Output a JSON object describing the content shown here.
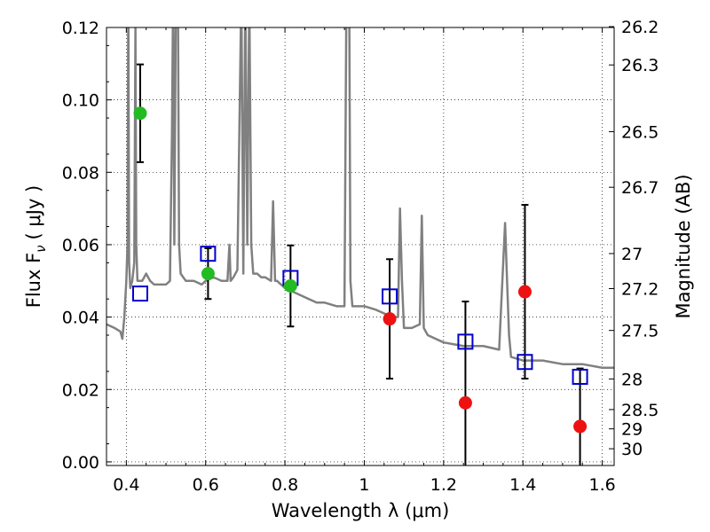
{
  "chart_data": {
    "type": "scatter",
    "xlabel": "Wavelength  λ (μm)",
    "ylabel": "Flux  F",
    "ylabel_sub": "ν",
    "ylabel_unit": "( μJy )",
    "y2label": "Magnitude (AB)",
    "xlim": [
      0.35,
      1.63
    ],
    "ylim": [
      -0.001,
      0.12
    ],
    "grid": true,
    "x_ticks": [
      0.4,
      0.6,
      0.8,
      1.0,
      1.2,
      1.4,
      1.6
    ],
    "x_tick_labels": [
      "0.4",
      "0.6",
      "0.8",
      "1",
      "1.2",
      "1.4",
      "1.6"
    ],
    "y_ticks": [
      0.0,
      0.02,
      0.04,
      0.06,
      0.08,
      0.1,
      0.12
    ],
    "y_tick_labels": [
      "0.00",
      "0.02",
      "0.04",
      "0.06",
      "0.08",
      "0.10",
      "0.12"
    ],
    "mag_ticks": [
      26.2,
      26.3,
      26.5,
      26.7,
      27,
      27.2,
      27.5,
      28,
      28.5,
      29,
      30
    ],
    "mag_tick_labels": [
      "26.2",
      "26.3",
      "26.5",
      "26.7",
      "27",
      "27.2",
      "27.5",
      "28",
      "28.5",
      "29",
      "30"
    ],
    "colors": {
      "green": "#22bb22",
      "red": "#ee1111",
      "model_box": "#0000cc",
      "spectrum": "#808080",
      "errorbar": "#000000"
    },
    "series": [
      {
        "marker": "circle-green",
        "points": [
          {
            "x": 0.435,
            "y": 0.0963,
            "yerr": 0.0135
          },
          {
            "x": 0.606,
            "y": 0.052,
            "yerr": 0.007
          },
          {
            "x": 0.814,
            "y": 0.0486,
            "yerr": 0.0112
          }
        ]
      },
      {
        "marker": "circle-red",
        "points": [
          {
            "x": 1.064,
            "y": 0.0395,
            "yerr": 0.0165
          },
          {
            "x": 1.255,
            "y": 0.0163,
            "yerr": 0.028
          },
          {
            "x": 1.405,
            "y": 0.047,
            "yerr": 0.024
          },
          {
            "x": 1.544,
            "y": 0.0098,
            "yerr": 0.016
          }
        ]
      },
      {
        "marker": "square-blue",
        "points": [
          {
            "x": 0.435,
            "y": 0.0465
          },
          {
            "x": 0.606,
            "y": 0.0575
          },
          {
            "x": 0.814,
            "y": 0.0508
          },
          {
            "x": 1.064,
            "y": 0.0457
          },
          {
            "x": 1.255,
            "y": 0.0332
          },
          {
            "x": 1.405,
            "y": 0.0276
          },
          {
            "x": 1.544,
            "y": 0.0235
          }
        ]
      },
      {
        "marker": "spectrum-line",
        "x": [
          0.35,
          0.37,
          0.385,
          0.39,
          0.395,
          0.4,
          0.403,
          0.405,
          0.407,
          0.41,
          0.415,
          0.42,
          0.423,
          0.425,
          0.428,
          0.43,
          0.44,
          0.45,
          0.46,
          0.47,
          0.48,
          0.49,
          0.5,
          0.51,
          0.515,
          0.518,
          0.521,
          0.525,
          0.53,
          0.533,
          0.537,
          0.55,
          0.57,
          0.59,
          0.6,
          0.62,
          0.64,
          0.655,
          0.66,
          0.663,
          0.67,
          0.68,
          0.69,
          0.695,
          0.7,
          0.705,
          0.71,
          0.715,
          0.72,
          0.73,
          0.74,
          0.75,
          0.765,
          0.77,
          0.775,
          0.78,
          0.8,
          0.82,
          0.84,
          0.86,
          0.88,
          0.9,
          0.93,
          0.95,
          0.955,
          0.958,
          0.962,
          0.965,
          0.97,
          1.0,
          1.03,
          1.05,
          1.07,
          1.085,
          1.09,
          1.095,
          1.1,
          1.12,
          1.14,
          1.145,
          1.15,
          1.16,
          1.2,
          1.25,
          1.3,
          1.34,
          1.355,
          1.36,
          1.365,
          1.37,
          1.4,
          1.45,
          1.5,
          1.55,
          1.6,
          1.63
        ],
        "y": [
          0.038,
          0.037,
          0.036,
          0.034,
          0.04,
          0.05,
          0.06,
          0.13,
          0.055,
          0.048,
          0.05,
          0.055,
          0.12,
          0.06,
          0.05,
          0.05,
          0.05,
          0.052,
          0.05,
          0.049,
          0.049,
          0.049,
          0.049,
          0.05,
          0.09,
          0.13,
          0.06,
          0.13,
          0.13,
          0.06,
          0.052,
          0.05,
          0.05,
          0.049,
          0.05,
          0.051,
          0.05,
          0.05,
          0.06,
          0.05,
          0.051,
          0.053,
          0.13,
          0.052,
          0.13,
          0.06,
          0.13,
          0.06,
          0.052,
          0.052,
          0.051,
          0.051,
          0.05,
          0.072,
          0.05,
          0.05,
          0.048,
          0.047,
          0.046,
          0.045,
          0.044,
          0.044,
          0.043,
          0.043,
          0.13,
          0.13,
          0.13,
          0.05,
          0.043,
          0.043,
          0.042,
          0.041,
          0.04,
          0.04,
          0.07,
          0.05,
          0.037,
          0.037,
          0.038,
          0.068,
          0.037,
          0.035,
          0.033,
          0.032,
          0.032,
          0.031,
          0.066,
          0.05,
          0.035,
          0.029,
          0.028,
          0.028,
          0.027,
          0.027,
          0.026,
          0.026
        ]
      }
    ]
  }
}
